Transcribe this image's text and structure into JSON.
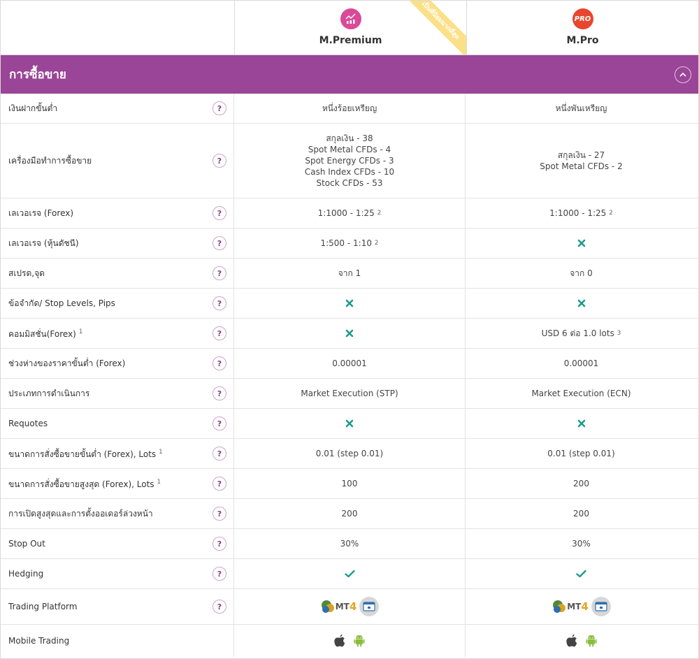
{
  "plans": [
    {
      "name": "M.Premium",
      "icon": "chart-icon",
      "color": "#d94a98",
      "ribbon": "เป็นที่นิยมมากที่สุด"
    },
    {
      "name": "M.Pro",
      "icon": "pro-badge-icon",
      "color": "#e8462e",
      "badge_text": "PRO"
    }
  ],
  "section": {
    "title": "การซื้อขาย",
    "accent": "#9a4597"
  },
  "help_glyph": "?",
  "rows": [
    {
      "label": "เงินฝากขั้นต่ำ",
      "p1": "หนึ่งร้อยเหรียญ",
      "p2": "หนึ่งพันเหรียญ"
    },
    {
      "label": "เครื่องมือทำการซื้อขาย",
      "p1_lines": [
        "สกุลเงิน - 38",
        "Spot Metal CFDs - 4",
        "Spot Energy CFDs - 3",
        "Cash Index CFDs - 10",
        "Stock CFDs - 53"
      ],
      "p2_lines": [
        "สกุลเงิน - 27",
        "Spot Metal CFDs - 2"
      ]
    },
    {
      "label": "เลเวอเรจ (Forex)",
      "p1": "1:1000 - 1:25",
      "p1_sup": "2",
      "p2": "1:1000 - 1:25",
      "p2_sup": "2"
    },
    {
      "label": "เลเวอเรจ (หุ้นดัชนี)",
      "p1": "1:500 - 1:10",
      "p1_sup": "2",
      "p2_icon": "cross-icon"
    },
    {
      "label": "สเปรด,จุด",
      "p1": "จาก 1",
      "p2": "จาก 0"
    },
    {
      "label": "ข้อจำกัด/ Stop Levels, Pips",
      "p1_icon": "cross-icon",
      "p2_icon": "cross-icon"
    },
    {
      "label": "คอมมิสชั่น(Forex)",
      "label_sup": "1",
      "p1_icon": "cross-icon",
      "p2": "USD 6 ต่อ 1.0 lots",
      "p2_sup": "3"
    },
    {
      "label": "ช่วงห่างของราคาขั้นต่ำ (Forex)",
      "p1": "0.00001",
      "p2": "0.00001"
    },
    {
      "label": "ประเภทการดำเนินการ",
      "p1": "Market Execution (STP)",
      "p2": "Market Execution (ECN)"
    },
    {
      "label": "Requotes",
      "p1_icon": "cross-icon",
      "p2_icon": "cross-icon"
    },
    {
      "label": "ขนาดการสั่งซื้อขายขั้นต่ำ (Forex), Lots",
      "label_sup": "1",
      "p1": "0.01 (step 0.01)",
      "p2": "0.01 (step 0.01)"
    },
    {
      "label": "ขนาดการสั่งซื้อขายสูงสุด (Forex), Lots",
      "label_sup": "1",
      "p1": "100",
      "p2": "200"
    },
    {
      "label": "การเปิดสูงสุดและการตั้งออเดอร์ล่วงหน้า",
      "p1": "200",
      "p2": "200"
    },
    {
      "label": "Stop Out",
      "p1": "30%",
      "p2": "30%"
    },
    {
      "label": "Hedging",
      "p1_icon": "check-icon",
      "p2_icon": "check-icon"
    },
    {
      "label": "Trading Platform",
      "platform": {
        "mt_text": "MT",
        "mt_version": "4"
      }
    },
    {
      "label": "Mobile Trading",
      "mobile": [
        "apple-icon",
        "android-icon"
      ]
    }
  ],
  "colors": {
    "cross": "#1e9a8a",
    "check": "#1e9a8a",
    "help_border": "#c9a7c8",
    "help_text": "#8b3c89",
    "ribbon": "#fbe08a"
  }
}
